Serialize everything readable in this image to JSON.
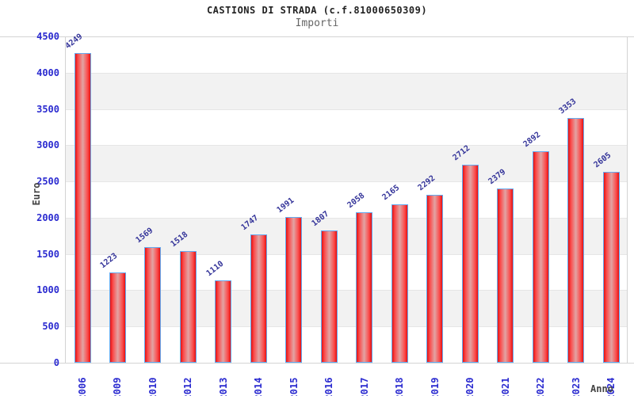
{
  "chart_data": {
    "type": "bar",
    "title": "CASTIONS DI STRADA (c.f.81000650309)",
    "subtitle": "Importi",
    "xlabel": "Anno",
    "ylabel": "Euro",
    "categories": [
      "2006",
      "2009",
      "2010",
      "2012",
      "2013",
      "2014",
      "2015",
      "2016",
      "2017",
      "2018",
      "2019",
      "2020",
      "2021",
      "2022",
      "2023",
      "2024"
    ],
    "values": [
      4249,
      1223,
      1569,
      1518,
      1110,
      1747,
      1991,
      1807,
      2058,
      2165,
      2292,
      2712,
      2379,
      2892,
      3353,
      2605
    ],
    "value_labels": [
      "4249",
      "1223",
      "1569",
      "1518",
      "1110",
      "1747",
      "1991",
      "1807",
      "2058",
      "2165",
      "2292",
      "2712",
      "2379",
      "2892",
      "3353",
      "2605"
    ],
    "ylim": [
      0,
      4500
    ],
    "ytick_step": 500,
    "yticks": [
      "4500",
      "4000",
      "3500",
      "3000",
      "2500",
      "2000",
      "1500",
      "1000",
      "500",
      "0"
    ],
    "grid": "horizontal-alternating-bands",
    "legend": "none"
  },
  "colors": {
    "bar_fill_edge": "#e41212",
    "bar_fill_mid": "#e2a4a4",
    "bar_border": "#64aaf0",
    "axis_tick_text": "#2b2bd0",
    "value_label_text": "#333399",
    "band_gray": "#f2f2f2",
    "plot_border": "#d3d3d3",
    "title_text": "#222222",
    "subtitle_text": "#666666",
    "axis_title_text": "#444444"
  }
}
